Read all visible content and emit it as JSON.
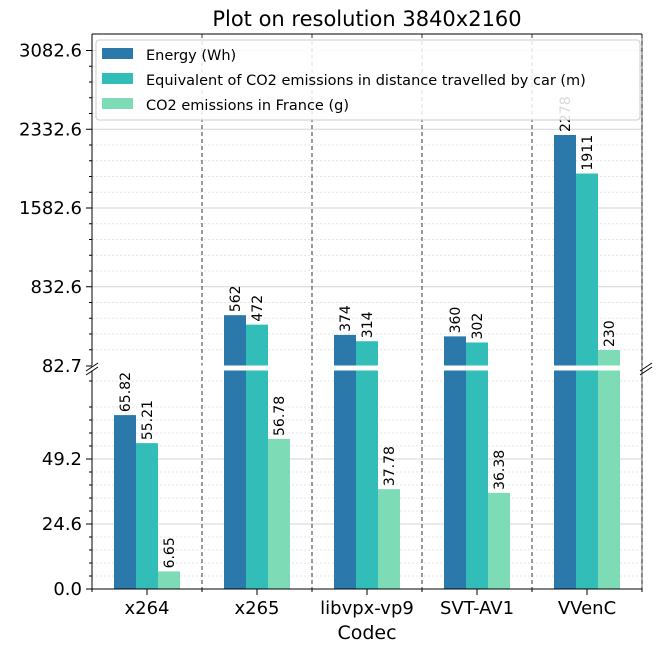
{
  "chart_data": {
    "type": "bar",
    "title": "Plot on resolution 3840x2160",
    "xlabel": "Codec",
    "ylabel": "",
    "categories": [
      "x264",
      "x265",
      "libvpx-vp9",
      "SVT-AV1",
      "VVenC"
    ],
    "series": [
      {
        "name": "Energy (Wh)",
        "color": "#2b79aa",
        "values": [
          65.82,
          562,
          374,
          360,
          2278
        ],
        "labels": [
          "65.82",
          "562",
          "374",
          "360",
          "2278"
        ]
      },
      {
        "name": "Equivalent of CO2 emissions in distance travelled by car (m)",
        "color": "#33bdb8",
        "values": [
          55.21,
          472,
          314,
          302,
          1911
        ],
        "labels": [
          "55.21",
          "472",
          "314",
          "302",
          "1911"
        ]
      },
      {
        "name": "CO2 emissions in France (g)",
        "color": "#7ddcb6",
        "values": [
          6.65,
          56.78,
          37.78,
          36.38,
          230
        ],
        "labels": [
          "6.65",
          "56.78",
          "37.78",
          "36.38",
          "230"
        ]
      }
    ],
    "broken_axis": {
      "lower": {
        "ylim": [
          0,
          82.7
        ],
        "ticks": [
          "0.0",
          "24.6",
          "49.2",
          "82.7"
        ]
      },
      "upper": {
        "ylim": [
          82.7,
          3082.6
        ],
        "ticks": [
          "832.6",
          "1582.6",
          "2332.6",
          "3082.6"
        ]
      }
    },
    "grid": true,
    "legend_position": "top"
  }
}
